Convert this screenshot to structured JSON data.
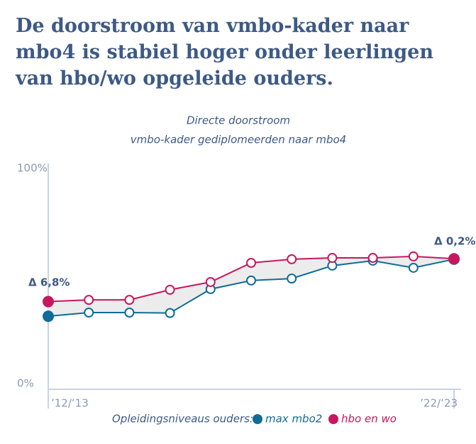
{
  "chart_data": {
    "type": "line",
    "title": "De doorstroom van vmbo-kader naar mbo4 is stabiel hoger onder leerlingen van hbo/wo opgeleide ouders.",
    "subtitle": [
      "Directe doorstroom",
      "vmbo-kader gediplomeerden naar mbo4"
    ],
    "categories": [
      "’12/’13",
      null,
      null,
      null,
      null,
      null,
      null,
      null,
      null,
      null,
      "’22/’23"
    ],
    "series": [
      {
        "name": "max mbo2",
        "color": "#0f6c96",
        "values": [
          31.3,
          33.0,
          33.0,
          32.8,
          43.9,
          47.9,
          48.8,
          54.8,
          57.1,
          53.8,
          57.8
        ]
      },
      {
        "name": "hbo en wo",
        "color": "#c8175e",
        "values": [
          38.1,
          38.9,
          38.9,
          43.6,
          47.2,
          56.1,
          57.8,
          58.4,
          58.4,
          59.1,
          58.0
        ]
      }
    ],
    "annotations": [
      "Δ 6,8%",
      "Δ 0,2%"
    ],
    "legend_title": "Opleidingsniveaus ouders:",
    "ylim": [
      0,
      100
    ],
    "yticks": [
      {
        "value": 0,
        "label": "0%"
      },
      {
        "value": 100,
        "label": "100%"
      }
    ]
  }
}
